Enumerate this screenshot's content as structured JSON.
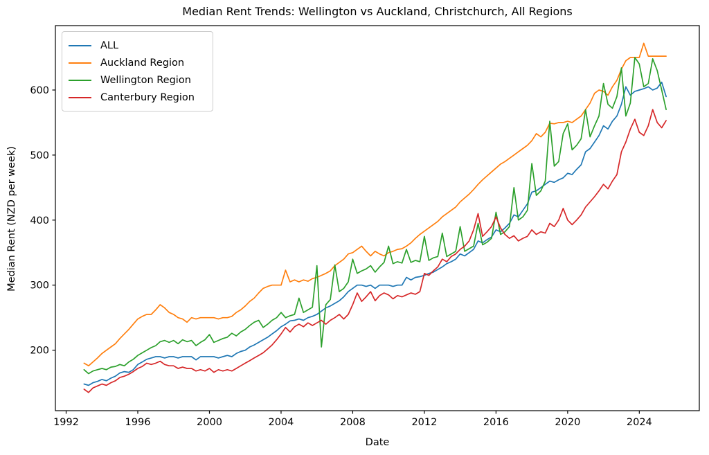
{
  "chart_data": {
    "type": "line",
    "title": "Median Rent Trends: Wellington vs Auckland, Christchurch, All Regions",
    "xlabel": "Date",
    "ylabel": "Median Rent (NZD per week)",
    "xlim": [
      1991.4,
      2027.35
    ],
    "ylim": [
      107,
      699
    ],
    "xticks": [
      1992,
      1996,
      2000,
      2004,
      2008,
      2012,
      2016,
      2020,
      2024
    ],
    "yticks": [
      200,
      300,
      400,
      500,
      600
    ],
    "grid": false,
    "legend_position": "upper-left",
    "x_start": 1993.0,
    "x_step": 0.25,
    "series": [
      {
        "name": "ALL",
        "color": "#1f77b4",
        "values": [
          148,
          146,
          150,
          152,
          155,
          153,
          157,
          160,
          165,
          167,
          166,
          170,
          178,
          182,
          186,
          188,
          190,
          190,
          188,
          190,
          190,
          188,
          190,
          190,
          190,
          185,
          190,
          190,
          190,
          190,
          188,
          190,
          192,
          190,
          195,
          198,
          200,
          205,
          208,
          212,
          216,
          220,
          225,
          230,
          236,
          240,
          245,
          246,
          248,
          246,
          250,
          252,
          255,
          260,
          265,
          268,
          272,
          276,
          282,
          290,
          295,
          300,
          300,
          298,
          300,
          295,
          300,
          300,
          300,
          298,
          300,
          300,
          312,
          308,
          312,
          313,
          315,
          318,
          320,
          324,
          328,
          333,
          336,
          340,
          348,
          345,
          350,
          355,
          368,
          365,
          370,
          374,
          385,
          382,
          388,
          395,
          408,
          405,
          415,
          425,
          443,
          445,
          450,
          455,
          460,
          458,
          462,
          465,
          472,
          470,
          478,
          485,
          505,
          510,
          520,
          530,
          545,
          540,
          552,
          560,
          578,
          605,
          592,
          598,
          600,
          602,
          605,
          600,
          603,
          612,
          590
        ]
      },
      {
        "name": "Auckland Region",
        "color": "#ff7f0e",
        "values": [
          180,
          176,
          182,
          188,
          195,
          200,
          205,
          210,
          218,
          225,
          232,
          240,
          248,
          252,
          255,
          255,
          262,
          270,
          265,
          258,
          255,
          250,
          248,
          243,
          250,
          248,
          250,
          250,
          250,
          250,
          248,
          250,
          250,
          252,
          258,
          262,
          268,
          275,
          280,
          288,
          295,
          298,
          300,
          300,
          300,
          323,
          305,
          308,
          305,
          308,
          306,
          310,
          312,
          315,
          318,
          322,
          330,
          335,
          340,
          348,
          350,
          355,
          360,
          352,
          345,
          352,
          348,
          345,
          350,
          352,
          355,
          356,
          360,
          365,
          372,
          378,
          383,
          388,
          393,
          398,
          405,
          410,
          415,
          420,
          428,
          434,
          440,
          447,
          455,
          462,
          468,
          474,
          480,
          486,
          490,
          495,
          500,
          505,
          510,
          515,
          522,
          533,
          528,
          535,
          549,
          548,
          550,
          550,
          552,
          550,
          555,
          560,
          570,
          580,
          595,
          600,
          598,
          592,
          605,
          615,
          632,
          645,
          650,
          650,
          650,
          672,
          652,
          652,
          652,
          652,
          652
        ]
      },
      {
        "name": "Wellington Region",
        "color": "#2ca02c",
        "values": [
          170,
          164,
          168,
          170,
          172,
          170,
          174,
          175,
          178,
          176,
          182,
          186,
          192,
          196,
          200,
          204,
          207,
          213,
          215,
          212,
          215,
          210,
          216,
          213,
          215,
          207,
          212,
          216,
          224,
          212,
          215,
          218,
          220,
          226,
          222,
          228,
          232,
          238,
          243,
          246,
          235,
          240,
          246,
          250,
          258,
          250,
          253,
          255,
          280,
          258,
          262,
          266,
          330,
          205,
          270,
          278,
          331,
          290,
          295,
          305,
          340,
          318,
          322,
          325,
          330,
          320,
          328,
          335,
          360,
          333,
          336,
          334,
          355,
          335,
          338,
          336,
          375,
          338,
          342,
          344,
          380,
          344,
          348,
          352,
          390,
          352,
          356,
          360,
          395,
          362,
          366,
          372,
          412,
          378,
          382,
          390,
          450,
          400,
          405,
          415,
          487,
          438,
          445,
          460,
          552,
          483,
          490,
          533,
          548,
          508,
          515,
          525,
          570,
          528,
          545,
          560,
          610,
          578,
          572,
          590,
          634,
          560,
          580,
          650,
          640,
          605,
          610,
          648,
          630,
          600,
          570
        ]
      },
      {
        "name": "Canterbury Region",
        "color": "#d62728",
        "values": [
          140,
          135,
          142,
          145,
          148,
          146,
          150,
          153,
          158,
          160,
          163,
          167,
          172,
          175,
          180,
          178,
          180,
          183,
          178,
          176,
          176,
          172,
          174,
          172,
          172,
          168,
          170,
          168,
          172,
          166,
          170,
          168,
          170,
          168,
          172,
          176,
          180,
          184,
          188,
          192,
          196,
          202,
          208,
          216,
          225,
          235,
          228,
          236,
          240,
          236,
          242,
          238,
          242,
          246,
          240,
          246,
          250,
          255,
          248,
          255,
          270,
          288,
          275,
          282,
          290,
          276,
          284,
          288,
          285,
          279,
          284,
          282,
          285,
          288,
          286,
          290,
          318,
          315,
          322,
          328,
          340,
          336,
          344,
          348,
          355,
          360,
          368,
          385,
          410,
          375,
          382,
          390,
          405,
          388,
          378,
          372,
          376,
          368,
          372,
          375,
          385,
          378,
          382,
          380,
          395,
          390,
          400,
          418,
          400,
          393,
          400,
          408,
          420,
          428,
          436,
          445,
          455,
          448,
          460,
          470,
          505,
          520,
          540,
          555,
          535,
          530,
          545,
          570,
          550,
          542,
          553
        ]
      }
    ]
  }
}
